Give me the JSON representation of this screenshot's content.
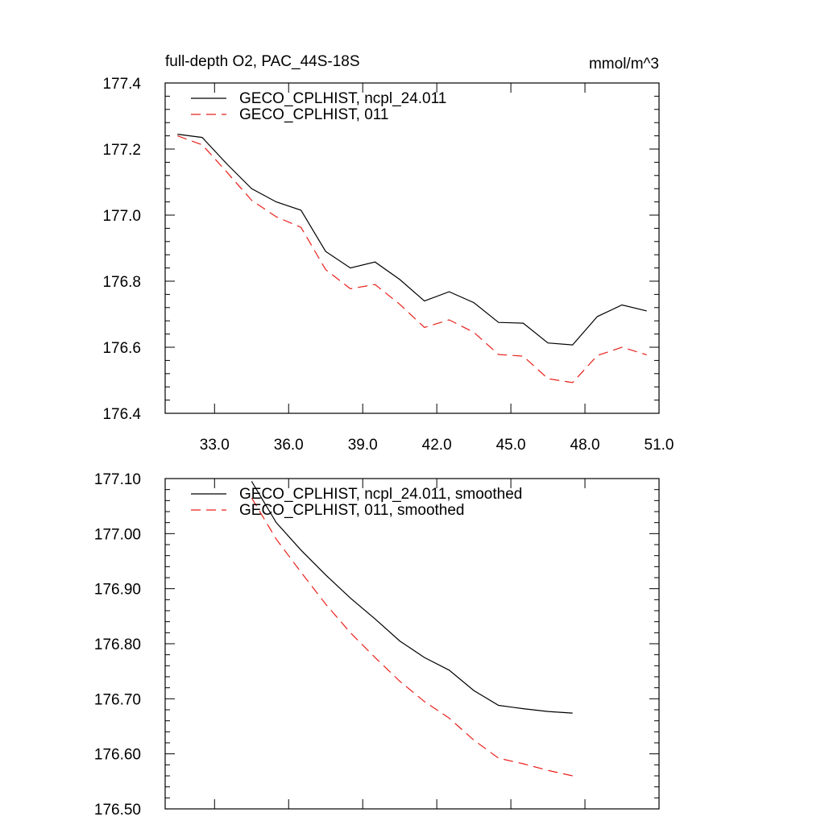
{
  "chart_data": [
    {
      "type": "line",
      "title": "full-depth O2, PAC_44S-18S",
      "units": "mmol/m^3",
      "xlabel": "",
      "ylabel": "",
      "xlim": [
        31,
        51
      ],
      "ylim": [
        176.4,
        177.4
      ],
      "x_ticks": [
        33,
        36,
        39,
        42,
        45,
        48,
        51
      ],
      "x_tick_labels": [
        "33.0",
        "36.0",
        "39.0",
        "42.0",
        "45.0",
        "48.0",
        "51.0"
      ],
      "y_ticks": [
        176.4,
        176.6,
        176.8,
        177.0,
        177.2,
        177.4
      ],
      "y_tick_labels": [
        "176.4",
        "176.6",
        "176.8",
        "177.0",
        "177.2",
        "177.4"
      ],
      "legend_position": "top-left",
      "x": [
        31.5,
        32.5,
        33.5,
        34.5,
        35.5,
        36.5,
        37.5,
        38.5,
        39.5,
        40.5,
        41.5,
        42.5,
        43.5,
        44.5,
        45.5,
        46.5,
        47.5,
        48.5,
        49.5,
        50.5
      ],
      "series": [
        {
          "name": "GECO_CPLHIST, ncpl_24.011",
          "color": "#000000",
          "dash": "solid",
          "values": [
            177.245,
            177.235,
            177.155,
            177.08,
            177.04,
            177.015,
            176.89,
            176.84,
            176.858,
            176.805,
            176.74,
            176.768,
            176.735,
            176.675,
            176.673,
            176.613,
            176.607,
            176.693,
            176.728,
            176.71
          ]
        },
        {
          "name": "GECO_CPLHIST, 011",
          "color": "#e8201a",
          "dash": "dashed",
          "values": [
            177.24,
            177.213,
            177.13,
            177.045,
            176.995,
            176.963,
            176.835,
            176.777,
            176.79,
            176.73,
            176.66,
            176.683,
            176.645,
            176.578,
            176.573,
            176.505,
            176.493,
            176.575,
            176.6,
            176.577
          ]
        }
      ]
    },
    {
      "type": "line",
      "title": "",
      "xlabel": "",
      "ylabel": "",
      "xlim": [
        31,
        51
      ],
      "ylim": [
        176.5,
        177.1
      ],
      "x_ticks": [
        33,
        36,
        39,
        42,
        45,
        48,
        51
      ],
      "x_tick_labels": [],
      "y_ticks": [
        176.5,
        176.6,
        176.7,
        176.8,
        176.9,
        177.0,
        177.1
      ],
      "y_tick_labels": [
        "176.50",
        "176.60",
        "176.70",
        "176.80",
        "176.90",
        "177.00",
        "177.10"
      ],
      "legend_position": "top-left",
      "x": [
        34.5,
        35.5,
        36.5,
        37.5,
        38.5,
        39.5,
        40.5,
        41.5,
        42.5,
        43.5,
        44.5,
        45.5,
        46.5,
        47.5
      ],
      "series": [
        {
          "name": "GECO_CPLHIST, ncpl_24.011, smoothed",
          "color": "#000000",
          "dash": "solid",
          "values": [
            177.095,
            177.02,
            176.97,
            176.925,
            176.883,
            176.845,
            176.805,
            176.775,
            176.752,
            176.715,
            176.688,
            176.682,
            176.677,
            176.674
          ]
        },
        {
          "name": "GECO_CPLHIST, 011, smoothed",
          "color": "#e8201a",
          "dash": "dashed",
          "values": [
            177.065,
            176.99,
            176.93,
            176.872,
            176.82,
            176.775,
            176.732,
            176.695,
            176.665,
            176.625,
            176.592,
            176.582,
            176.57,
            176.56
          ]
        }
      ]
    }
  ]
}
